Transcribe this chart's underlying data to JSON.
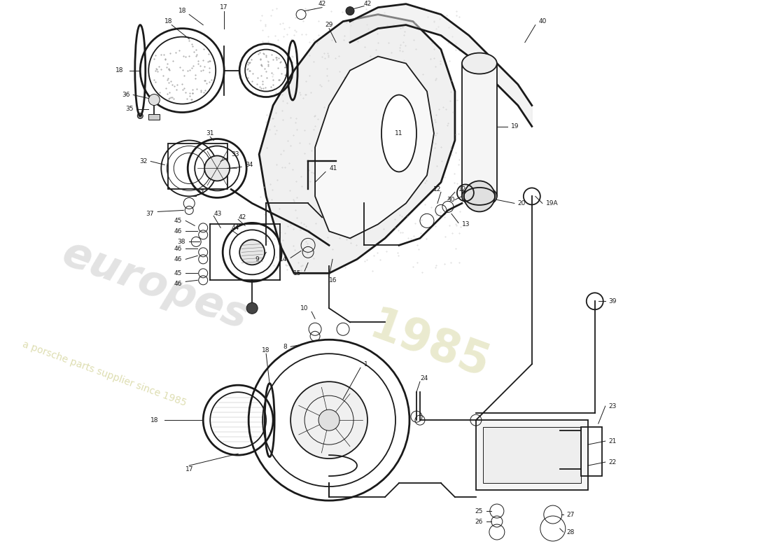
{
  "bg_color": "#ffffff",
  "line_color": "#1a1a1a",
  "lw_main": 1.3,
  "lw_thin": 0.7,
  "lw_thick": 2.0,
  "label_fontsize": 6.5,
  "fig_width": 11.0,
  "fig_height": 8.0,
  "dpi": 100,
  "xlim": [
    0,
    110
  ],
  "ylim": [
    0,
    80
  ]
}
